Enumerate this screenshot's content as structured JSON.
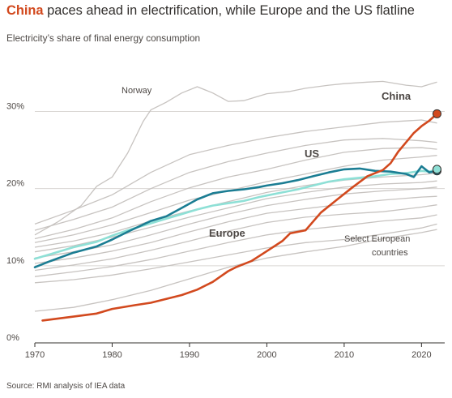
{
  "title": {
    "highlight": "China",
    "rest": " paces ahead in electrification, while Europe and the US flatline"
  },
  "subtitle": "Electricity’s share of final energy consumption",
  "source": "Source: RMI analysis of IEA data",
  "colors": {
    "china": "#d2491e",
    "us": "#1b7d93",
    "europe": "#8ee0d6",
    "countries": "#c7c3c0",
    "grid": "#d9d6d3",
    "axis": "#33302e"
  },
  "chart_data": {
    "type": "line",
    "title": "China paces ahead in electrification, while Europe and the US flatline",
    "ylabel": "Electricity’s share of final energy consumption",
    "xlim": [
      1970,
      2023
    ],
    "ylim": [
      0,
      30
    ],
    "x_ticks": [
      1970,
      1980,
      1990,
      2000,
      2010,
      2020
    ],
    "x_tick_labels": [
      "1970",
      "1980",
      "1990",
      "2000",
      "2010",
      "2020"
    ],
    "y_ticks": [
      0,
      10,
      20,
      30
    ],
    "y_tick_labels": [
      "0%",
      "10%",
      "20%",
      "30%"
    ],
    "grid": true,
    "annotations": {
      "norway": "Norway",
      "china": "China",
      "us": "US",
      "europe": "Europe",
      "countries_line1": "Select European",
      "countries_line2": "countries"
    },
    "series": [
      {
        "name": "China",
        "x": [
          1971,
          1975,
          1978,
          1980,
          1983,
          1985,
          1987,
          1989,
          1991,
          1993,
          1994,
          1995,
          1996,
          1998,
          2000,
          2002,
          2003,
          2005,
          2007,
          2009,
          2011,
          2013,
          2014,
          2015,
          2016,
          2017,
          2018,
          2019,
          2020,
          2021,
          2022
        ],
        "y": [
          2.9,
          3.4,
          3.8,
          4.4,
          4.9,
          5.2,
          5.7,
          6.2,
          6.9,
          7.9,
          8.6,
          9.3,
          9.8,
          10.6,
          11.9,
          13.2,
          14.2,
          14.6,
          16.9,
          18.5,
          20.1,
          21.6,
          22.0,
          22.4,
          23.3,
          24.8,
          26.0,
          27.2,
          28.1,
          28.8,
          29.7
        ]
      },
      {
        "name": "US",
        "x": [
          1970,
          1972,
          1975,
          1978,
          1980,
          1982,
          1985,
          1987,
          1989,
          1991,
          1993,
          1995,
          1997,
          1999,
          2000,
          2002,
          2004,
          2006,
          2008,
          2010,
          2012,
          2014,
          2016,
          2018,
          2019,
          2020,
          2021,
          2022
        ],
        "y": [
          9.8,
          10.6,
          11.7,
          12.5,
          13.4,
          14.4,
          15.8,
          16.4,
          17.5,
          18.6,
          19.4,
          19.7,
          19.9,
          20.2,
          20.4,
          20.7,
          21.1,
          21.6,
          22.1,
          22.5,
          22.6,
          22.3,
          22.2,
          21.9,
          21.5,
          22.9,
          22.1,
          22.3
        ]
      },
      {
        "name": "Europe",
        "x": [
          1970,
          1972,
          1975,
          1978,
          1980,
          1982,
          1985,
          1987,
          1989,
          1991,
          1993,
          1995,
          1997,
          1999,
          2000,
          2002,
          2004,
          2006,
          2008,
          2010,
          2012,
          2014,
          2016,
          2018,
          2020,
          2021,
          2022
        ],
        "y": [
          10.9,
          11.5,
          12.4,
          13.1,
          13.9,
          14.6,
          15.5,
          16.1,
          16.7,
          17.3,
          17.8,
          18.1,
          18.4,
          18.9,
          19.1,
          19.5,
          19.9,
          20.4,
          20.9,
          21.2,
          21.4,
          21.6,
          21.9,
          22.0,
          22.3,
          22.2,
          22.5
        ]
      },
      {
        "name": "Norway",
        "x": [
          1970,
          1973,
          1976,
          1978,
          1980,
          1982,
          1984,
          1985,
          1987,
          1989,
          1991,
          1993,
          1995,
          1997,
          2000,
          2003,
          2005,
          2008,
          2010,
          2013,
          2015,
          2018,
          2020,
          2022
        ],
        "y": [
          14.0,
          15.7,
          17.8,
          20.3,
          21.5,
          24.6,
          28.7,
          30.2,
          31.2,
          32.4,
          33.2,
          32.4,
          31.3,
          31.4,
          32.3,
          32.6,
          33.0,
          33.4,
          33.6,
          33.8,
          33.9,
          33.4,
          33.2,
          33.8
        ]
      },
      {
        "name": "",
        "x": [
          1970,
          1975,
          1980,
          1985,
          1990,
          1995,
          2000,
          2005,
          2010,
          2015,
          2020,
          2022
        ],
        "y": [
          15.4,
          17.2,
          19.2,
          22.1,
          24.4,
          25.6,
          26.6,
          27.4,
          28.0,
          28.6,
          28.9,
          28.5
        ]
      },
      {
        "name": "",
        "x": [
          1970,
          1975,
          1980,
          1985,
          1990,
          1995,
          2000,
          2005,
          2010,
          2015,
          2020,
          2022
        ],
        "y": [
          14.6,
          16.0,
          17.6,
          20.0,
          22.1,
          23.5,
          24.6,
          25.6,
          26.3,
          26.5,
          26.2,
          26.0
        ]
      },
      {
        "name": "",
        "x": [
          1970,
          1975,
          1980,
          1985,
          1990,
          1995,
          2000,
          2005,
          2010,
          2015,
          2020,
          2022
        ],
        "y": [
          13.5,
          14.7,
          16.2,
          18.3,
          20.1,
          21.5,
          22.5,
          23.7,
          24.7,
          25.2,
          25.3,
          25.1
        ]
      },
      {
        "name": "",
        "x": [
          1970,
          1975,
          1980,
          1985,
          1990,
          1995,
          2000,
          2005,
          2010,
          2015,
          2020,
          2022
        ],
        "y": [
          13.0,
          14.0,
          15.3,
          16.9,
          18.5,
          19.7,
          20.9,
          21.9,
          22.9,
          23.7,
          24.1,
          24.3
        ]
      },
      {
        "name": "",
        "x": [
          1970,
          1975,
          1980,
          1985,
          1990,
          1995,
          2000,
          2005,
          2010,
          2015,
          2020,
          2022
        ],
        "y": [
          12.4,
          13.2,
          14.3,
          15.8,
          17.1,
          18.3,
          19.5,
          20.4,
          21.1,
          21.5,
          21.8,
          22.0
        ]
      },
      {
        "name": "",
        "x": [
          1970,
          1975,
          1980,
          1985,
          1990,
          1995,
          2000,
          2005,
          2010,
          2015,
          2020,
          2022
        ],
        "y": [
          11.8,
          12.6,
          13.7,
          15.0,
          16.3,
          17.5,
          18.7,
          19.5,
          20.2,
          20.6,
          20.8,
          21.0
        ]
      },
      {
        "name": "",
        "x": [
          1970,
          1975,
          1980,
          1985,
          1990,
          1995,
          2000,
          2005,
          2010,
          2015,
          2020,
          2022
        ],
        "y": [
          11.0,
          11.8,
          12.7,
          14.0,
          15.4,
          16.7,
          17.8,
          18.6,
          19.3,
          19.7,
          20.0,
          20.2
        ]
      },
      {
        "name": "",
        "x": [
          1970,
          1975,
          1980,
          1985,
          1990,
          1995,
          2000,
          2005,
          2010,
          2015,
          2020,
          2022
        ],
        "y": [
          10.3,
          11.0,
          11.9,
          13.0,
          14.4,
          15.7,
          16.8,
          17.4,
          18.0,
          18.5,
          18.9,
          19.0
        ]
      },
      {
        "name": "",
        "x": [
          1970,
          1975,
          1980,
          1985,
          1990,
          1995,
          2000,
          2005,
          2010,
          2015,
          2020,
          2022
        ],
        "y": [
          9.4,
          10.1,
          10.9,
          12.0,
          13.2,
          14.5,
          15.6,
          16.3,
          16.7,
          17.0,
          17.6,
          17.9
        ]
      },
      {
        "name": "",
        "x": [
          1970,
          1975,
          1980,
          1985,
          1990,
          1995,
          2000,
          2005,
          2010,
          2015,
          2020,
          2022
        ],
        "y": [
          8.6,
          9.2,
          9.9,
          10.8,
          11.9,
          13.0,
          14.0,
          14.7,
          15.2,
          15.8,
          16.2,
          16.6
        ]
      },
      {
        "name": "",
        "x": [
          1970,
          1975,
          1980,
          1985,
          1990,
          1995,
          2000,
          2005,
          2010,
          2015,
          2020,
          2022
        ],
        "y": [
          7.8,
          8.2,
          8.8,
          9.6,
          10.5,
          11.4,
          12.3,
          13.0,
          13.4,
          14.1,
          14.9,
          15.4
        ]
      },
      {
        "name": "",
        "x": [
          1970,
          1975,
          1980,
          1985,
          1990,
          1995,
          2000,
          2005,
          2010,
          2015,
          2020,
          2022
        ],
        "y": [
          4.1,
          4.6,
          5.6,
          6.8,
          8.3,
          9.8,
          11.0,
          11.8,
          12.5,
          13.5,
          14.3,
          14.7
        ]
      }
    ]
  }
}
